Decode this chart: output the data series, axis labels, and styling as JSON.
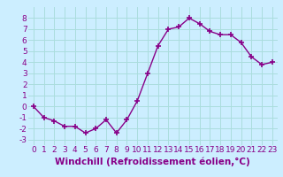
{
  "x": [
    0,
    1,
    2,
    3,
    4,
    5,
    6,
    7,
    8,
    9,
    10,
    11,
    12,
    13,
    14,
    15,
    16,
    17,
    18,
    19,
    20,
    21,
    22,
    23
  ],
  "y": [
    0.0,
    -1.0,
    -1.3,
    -1.8,
    -1.8,
    -2.4,
    -2.0,
    -1.2,
    -2.4,
    -1.2,
    0.5,
    3.0,
    5.5,
    7.0,
    7.2,
    8.0,
    7.5,
    6.8,
    6.5,
    6.5,
    5.8,
    4.5,
    3.8,
    4.0
  ],
  "line_color": "#880088",
  "marker": "+",
  "marker_size": 5,
  "marker_lw": 1.2,
  "bg_color": "#cceeff",
  "grid_color": "#aadddd",
  "xlabel": "Windchill (Refroidissement éolien,°C)",
  "xlabel_fontsize": 7.5,
  "tick_fontsize": 6.5,
  "ylim": [
    -3.5,
    9.0
  ],
  "xlim": [
    -0.5,
    23.5
  ],
  "yticks": [
    -3,
    -2,
    -1,
    0,
    1,
    2,
    3,
    4,
    5,
    6,
    7,
    8
  ],
  "xticks": [
    0,
    1,
    2,
    3,
    4,
    5,
    6,
    7,
    8,
    9,
    10,
    11,
    12,
    13,
    14,
    15,
    16,
    17,
    18,
    19,
    20,
    21,
    22,
    23
  ]
}
